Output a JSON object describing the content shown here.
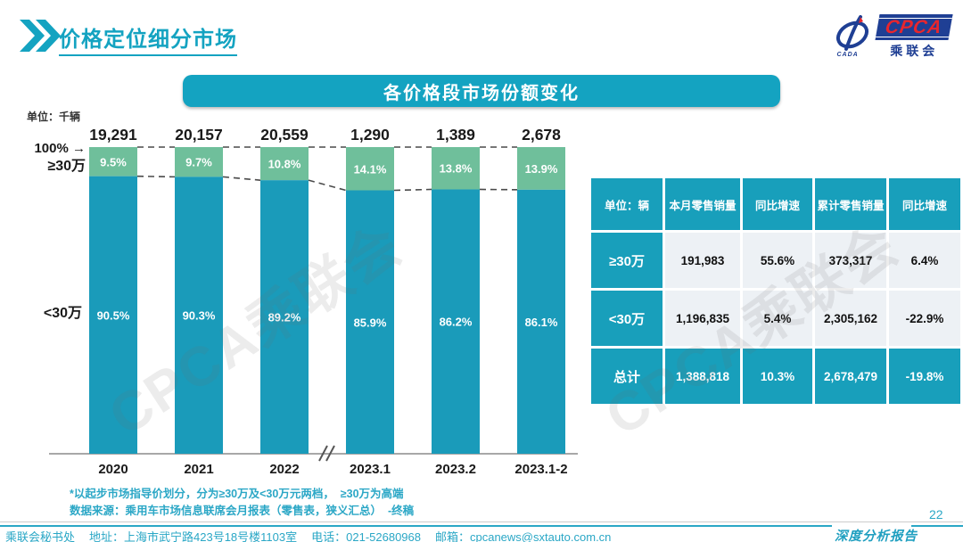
{
  "page": {
    "title": "价格定位细分市场",
    "page_number": "22"
  },
  "logo": {
    "cpca": "CPCA",
    "cn": "乘联会",
    "emblem_small": "CADA"
  },
  "banner": {
    "title": "各价格段市场份额变化"
  },
  "watermark_text": "CPCA乘联会",
  "chart_data": {
    "type": "bar",
    "stacked": true,
    "title": "各价格段市场份额变化",
    "unit_label": "单位：千辆",
    "categories": [
      "2020",
      "2021",
      "2022",
      "2023.1",
      "2023.2",
      "2023.1-2"
    ],
    "totals": [
      "19,291",
      "20,157",
      "20,559",
      "1,290",
      "1,389",
      "2,678"
    ],
    "series": [
      {
        "name": "≥30万",
        "values": [
          9.5,
          9.7,
          10.8,
          14.1,
          13.8,
          13.9
        ],
        "color": "#6fbf9b"
      },
      {
        "name": "<30万",
        "values": [
          90.5,
          90.3,
          89.2,
          85.9,
          86.2,
          86.1
        ],
        "color": "#1a9bba"
      }
    ],
    "ylim": [
      0,
      100
    ],
    "left_labels": {
      "top": "100% →",
      "top_segment": "≥30万",
      "bottom_segment": "<30万"
    },
    "axis_break_after": "2022",
    "grid": false,
    "legend": false
  },
  "table": {
    "headers": [
      "单位：辆",
      "本月零售销量",
      "同比增速",
      "累计零售销量",
      "同比增速"
    ],
    "rows": [
      {
        "label": "≥30万",
        "cells": [
          "191,983",
          "55.6%",
          "373,317",
          "6.4%"
        ],
        "total": false
      },
      {
        "label": "<30万",
        "cells": [
          "1,196,835",
          "5.4%",
          "2,305,162",
          "-22.9%"
        ],
        "total": false
      },
      {
        "label": "总计",
        "cells": [
          "1,388,818",
          "10.3%",
          "2,678,479",
          "-19.8%"
        ],
        "total": true
      }
    ]
  },
  "footnotes": {
    "note": "*以起步市场指导价划分，分为≥30万及<30万元两档，  ≥30万为高端",
    "source": "数据来源：乘用车市场信息联席会月报表（零售表，狭义汇总）  -终稿"
  },
  "footer": {
    "org": "乘联会秘书处",
    "address": "地址：上海市武宁路423号18号楼1103室",
    "phone": "电话：021-52680968",
    "email": "邮箱：cpcanews@sxtauto.com.cn",
    "report_label": "深度分析报告"
  }
}
